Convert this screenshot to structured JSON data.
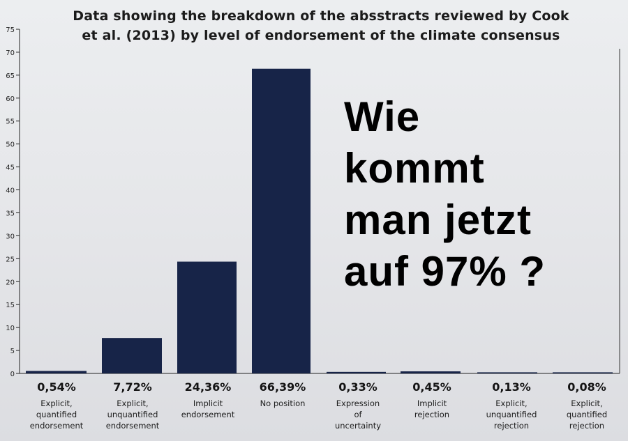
{
  "chart_data": {
    "type": "bar",
    "title_lines": [
      "Data showing the breakdown of the absstracts reviewed by Cook",
      "et al. (2013) by level of endorsement of the climate consensus"
    ],
    "xlabel": "",
    "ylabel": "",
    "ylim": [
      0,
      75
    ],
    "yticks": [
      0,
      5,
      10,
      15,
      20,
      25,
      30,
      35,
      40,
      45,
      50,
      55,
      60,
      65,
      70,
      75
    ],
    "grid": false,
    "categories": [
      "Explicit,\nquantified\nendorsement",
      "Explicit,\nunquantified\nendorsement",
      "Implicit\nendorsement",
      "No position",
      "Expression\nof\nuncertainty",
      "Implicit\nrejection",
      "Explicit,\nunquantified\nrejection",
      "Explicit,\nquantified\nrejection"
    ],
    "data_labels": [
      "0,54%",
      "7,72%",
      "24,36%",
      "66,39%",
      "0,33%",
      "0,45%",
      "0,13%",
      "0,08%"
    ],
    "values": [
      0.54,
      7.72,
      24.36,
      66.39,
      0.33,
      0.45,
      0.13,
      0.08
    ],
    "bar_color": "#172448"
  },
  "overlay": {
    "lines": [
      "Wie",
      "kommt",
      "man jetzt",
      "auf 97% ?"
    ]
  }
}
